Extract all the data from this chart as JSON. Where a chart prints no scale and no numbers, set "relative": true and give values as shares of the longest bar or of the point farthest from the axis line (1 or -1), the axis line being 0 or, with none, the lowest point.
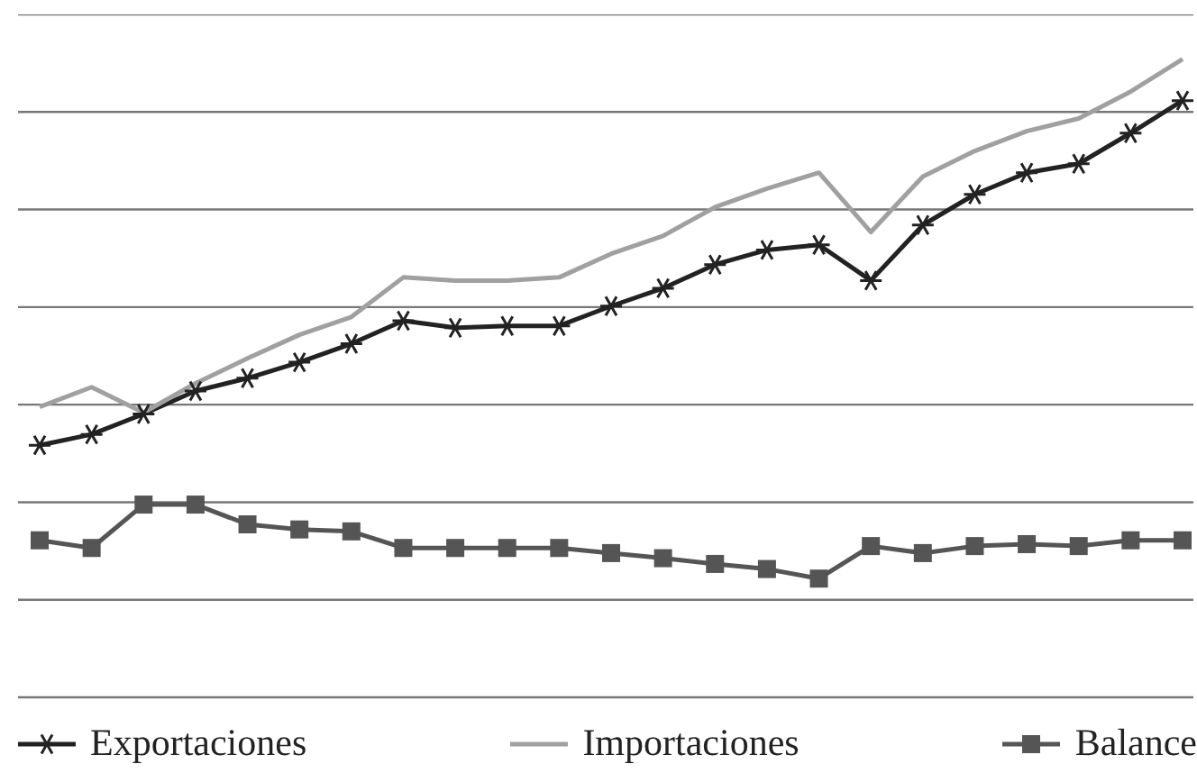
{
  "chart_data": {
    "type": "line",
    "relative": true,
    "categories": [
      null,
      null,
      null,
      null,
      null,
      null,
      null,
      null,
      null,
      null,
      null,
      null,
      null,
      null,
      null,
      null,
      null,
      null,
      null,
      null,
      null,
      null,
      null
    ],
    "grid": "y",
    "legend": "bottom",
    "series": [
      {
        "name": "Exportaciones",
        "color": "#222222",
        "marker": "cross",
        "values": [
          0.395,
          0.412,
          0.444,
          0.48,
          0.5,
          0.525,
          0.554,
          0.59,
          0.579,
          0.582,
          0.582,
          0.613,
          0.641,
          0.678,
          0.701,
          0.709,
          0.653,
          0.74,
          0.788,
          0.822,
          0.836,
          0.884,
          0.935
        ]
      },
      {
        "name": "Importaciones",
        "color": "#a0a0a0",
        "marker": "none",
        "values": [
          0.455,
          0.486,
          0.446,
          0.492,
          0.531,
          0.568,
          0.596,
          0.658,
          0.653,
          0.653,
          0.658,
          0.695,
          0.723,
          0.768,
          0.797,
          0.822,
          0.729,
          0.816,
          0.856,
          0.887,
          0.907,
          0.949,
          1
        ]
      },
      {
        "name": "Balance",
        "color": "#555555",
        "marker": "square",
        "values": [
          0.246,
          0.234,
          0.302,
          0.302,
          0.271,
          0.263,
          0.26,
          0.234,
          0.234,
          0.234,
          0.234,
          0.226,
          0.218,
          0.209,
          0.201,
          0.186,
          0.237,
          0.226,
          0.237,
          0.24,
          0.237,
          0.246,
          0.246
        ]
      }
    ]
  }
}
